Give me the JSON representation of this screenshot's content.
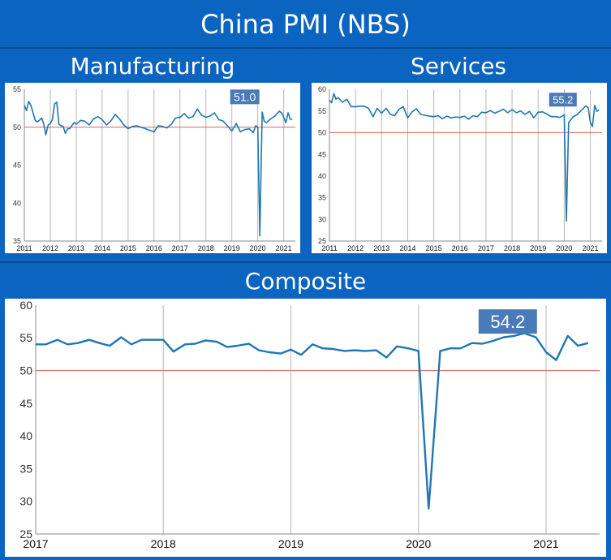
{
  "header": {
    "title": "China PMI (NBS)",
    "manufacturing_title": "Manufacturing",
    "services_title": "Services",
    "composite_title": "Composite"
  },
  "colors": {
    "banner": "#0b64c0",
    "series_line": "#1f77b4",
    "threshold_line": "#e06060",
    "callout": "#4a7ab8"
  },
  "chart_data": [
    {
      "id": "manufacturing",
      "type": "line",
      "title": "Manufacturing",
      "xlim": [
        2011,
        2021.45
      ],
      "ylim": [
        35,
        55
      ],
      "yticks": [
        35,
        40,
        45,
        50,
        55
      ],
      "xticks": [
        2011,
        2012,
        2013,
        2014,
        2015,
        2016,
        2017,
        2018,
        2019,
        2020,
        2021
      ],
      "reference_line": 50,
      "grid": "vertical",
      "callout": "51.0",
      "series": [
        {
          "x": [
            2011.0,
            2011.08,
            2011.17,
            2011.25,
            2011.33,
            2011.42,
            2011.5,
            2011.58,
            2011.67,
            2011.75,
            2011.83,
            2011.92,
            2012.0,
            2012.08,
            2012.17,
            2012.25,
            2012.33,
            2012.42,
            2012.5,
            2012.58,
            2012.67,
            2012.75,
            2012.83,
            2012.92,
            2013.0,
            2013.17,
            2013.33,
            2013.5,
            2013.67,
            2013.83,
            2014.0,
            2014.17,
            2014.33,
            2014.5,
            2014.67,
            2014.83,
            2015.0,
            2015.17,
            2015.33,
            2015.5,
            2015.67,
            2015.83,
            2016.0,
            2016.17,
            2016.33,
            2016.5,
            2016.67,
            2016.83,
            2017.0,
            2017.17,
            2017.33,
            2017.5,
            2017.67,
            2017.83,
            2018.0,
            2018.17,
            2018.33,
            2018.5,
            2018.67,
            2018.83,
            2019.0,
            2019.17,
            2019.33,
            2019.5,
            2019.67,
            2019.83,
            2019.92,
            2020.0,
            2020.08,
            2020.17,
            2020.25,
            2020.33,
            2020.5,
            2020.67,
            2020.83,
            2020.92,
            2021.0,
            2021.08,
            2021.17,
            2021.25,
            2021.33
          ],
          "y": [
            52.9,
            52.2,
            53.4,
            52.9,
            52.0,
            50.9,
            50.7,
            50.9,
            51.2,
            50.4,
            49.0,
            50.3,
            50.5,
            51.0,
            53.1,
            53.3,
            50.4,
            50.2,
            50.1,
            49.2,
            49.8,
            49.8,
            50.2,
            50.6,
            50.4,
            50.9,
            50.8,
            50.3,
            51.1,
            51.4,
            51.0,
            50.3,
            50.8,
            51.7,
            51.1,
            50.3,
            49.8,
            50.1,
            50.2,
            50.0,
            49.8,
            49.6,
            49.4,
            50.2,
            50.1,
            49.9,
            50.4,
            51.2,
            51.3,
            51.8,
            51.2,
            51.4,
            52.4,
            51.6,
            51.3,
            51.5,
            51.9,
            51.0,
            50.8,
            50.2,
            49.5,
            50.5,
            49.4,
            49.7,
            49.8,
            49.3,
            50.2,
            50.0,
            35.7,
            52.0,
            50.8,
            50.6,
            51.1,
            51.5,
            52.1,
            51.9,
            51.3,
            50.6,
            51.9,
            51.1,
            51.0
          ]
        }
      ]
    },
    {
      "id": "services",
      "type": "line",
      "title": "Services",
      "xlim": [
        2011,
        2021.45
      ],
      "ylim": [
        25,
        60
      ],
      "yticks": [
        25,
        30,
        35,
        40,
        45,
        50,
        55,
        60
      ],
      "xticks": [
        2011,
        2012,
        2013,
        2014,
        2015,
        2016,
        2017,
        2018,
        2019,
        2020,
        2021
      ],
      "reference_line": 50,
      "grid": "vertical",
      "callout": "55.2",
      "series": [
        {
          "x": [
            2011.0,
            2011.08,
            2011.17,
            2011.25,
            2011.33,
            2011.5,
            2011.67,
            2011.83,
            2012.0,
            2012.17,
            2012.33,
            2012.5,
            2012.67,
            2012.83,
            2013.0,
            2013.17,
            2013.33,
            2013.5,
            2013.67,
            2013.83,
            2014.0,
            2014.17,
            2014.33,
            2014.5,
            2014.67,
            2014.83,
            2015.0,
            2015.17,
            2015.33,
            2015.5,
            2015.67,
            2015.83,
            2016.0,
            2016.17,
            2016.33,
            2016.5,
            2016.67,
            2016.83,
            2017.0,
            2017.17,
            2017.33,
            2017.5,
            2017.67,
            2017.83,
            2018.0,
            2018.17,
            2018.33,
            2018.5,
            2018.67,
            2018.83,
            2019.0,
            2019.17,
            2019.33,
            2019.5,
            2019.67,
            2019.83,
            2020.0,
            2020.08,
            2020.17,
            2020.33,
            2020.5,
            2020.67,
            2020.83,
            2020.92,
            2021.0,
            2021.08,
            2021.17,
            2021.25,
            2021.33
          ],
          "y": [
            57.5,
            56.9,
            59.0,
            57.7,
            58.1,
            57.0,
            57.7,
            56.0,
            56.0,
            56.1,
            56.1,
            55.6,
            53.7,
            55.6,
            54.5,
            55.6,
            54.3,
            53.9,
            55.4,
            56.0,
            53.4,
            54.8,
            55.5,
            54.2,
            54.0,
            53.8,
            53.7,
            53.9,
            53.2,
            53.8,
            53.4,
            53.6,
            53.5,
            53.8,
            53.1,
            53.9,
            53.7,
            54.7,
            54.6,
            55.1,
            54.5,
            54.9,
            55.4,
            54.6,
            55.3,
            54.6,
            55.0,
            54.2,
            54.9,
            53.4,
            54.7,
            54.8,
            54.3,
            53.7,
            53.7,
            53.5,
            54.1,
            29.6,
            52.3,
            53.6,
            54.2,
            55.2,
            56.2,
            55.7,
            52.4,
            51.4,
            56.3,
            54.9,
            55.2
          ]
        }
      ]
    },
    {
      "id": "composite",
      "type": "line",
      "title": "Composite",
      "xlim": [
        2017,
        2021.42
      ],
      "ylim": [
        25,
        60
      ],
      "yticks": [
        25,
        30,
        35,
        40,
        45,
        50,
        55,
        60
      ],
      "xticks": [
        2017,
        2018,
        2019,
        2020,
        2021
      ],
      "reference_line": 50,
      "grid": "vertical",
      "callout": "54.2",
      "series": [
        {
          "x": [
            2017.0,
            2017.08,
            2017.17,
            2017.25,
            2017.33,
            2017.42,
            2017.5,
            2017.58,
            2017.67,
            2017.75,
            2017.83,
            2017.92,
            2018.0,
            2018.08,
            2018.17,
            2018.25,
            2018.33,
            2018.42,
            2018.5,
            2018.58,
            2018.67,
            2018.75,
            2018.83,
            2018.92,
            2019.0,
            2019.08,
            2019.17,
            2019.25,
            2019.33,
            2019.42,
            2019.5,
            2019.58,
            2019.67,
            2019.75,
            2019.83,
            2019.92,
            2020.0,
            2020.08,
            2020.17,
            2020.25,
            2020.33,
            2020.42,
            2020.5,
            2020.58,
            2020.67,
            2020.75,
            2020.83,
            2020.92,
            2021.0,
            2021.08,
            2021.17,
            2021.25,
            2021.33
          ],
          "y": [
            54.0,
            54.0,
            54.7,
            54.0,
            54.2,
            54.7,
            54.2,
            53.8,
            55.1,
            54.0,
            54.7,
            54.7,
            54.7,
            52.9,
            54.0,
            54.1,
            54.6,
            54.4,
            53.6,
            53.8,
            54.1,
            53.1,
            52.8,
            52.6,
            53.2,
            52.4,
            54.0,
            53.4,
            53.3,
            53.0,
            53.1,
            53.0,
            53.1,
            52.0,
            53.7,
            53.4,
            53.0,
            28.9,
            53.0,
            53.4,
            53.4,
            54.2,
            54.1,
            54.5,
            55.1,
            55.3,
            55.7,
            55.1,
            52.8,
            51.6,
            55.3,
            53.8,
            54.2
          ]
        }
      ]
    }
  ]
}
